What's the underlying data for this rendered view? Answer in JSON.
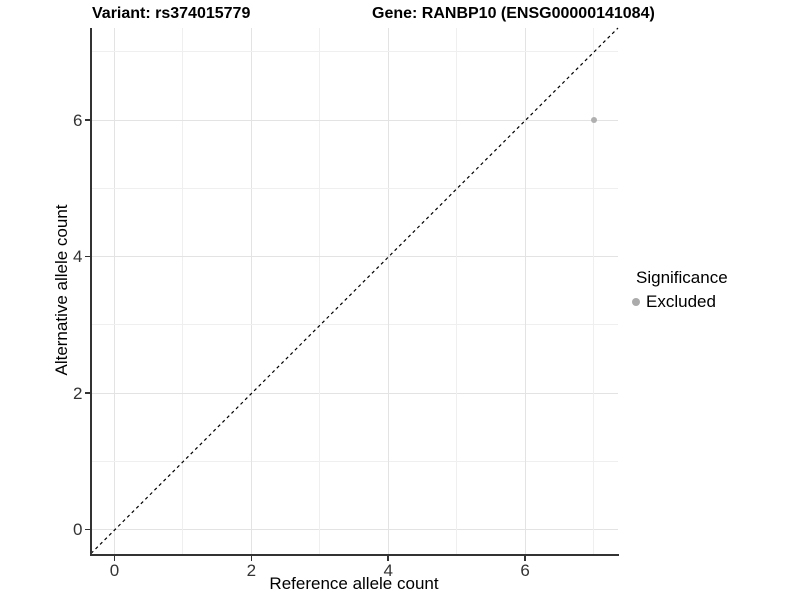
{
  "chart_data": {
    "type": "scatter",
    "title_left": "Variant: rs374015779",
    "title_right": "Gene: RANBP10 (ENSG00000141084)",
    "xlabel": "Reference allele count",
    "ylabel": "Alternative allele count",
    "xlim": [
      -0.35,
      7.35
    ],
    "ylim": [
      -0.35,
      7.35
    ],
    "x_ticks": [
      0,
      2,
      4,
      6
    ],
    "y_ticks": [
      0,
      2,
      4,
      6
    ],
    "grid_integers": [
      0,
      1,
      2,
      3,
      4,
      5,
      6,
      7
    ],
    "grid": "major at even integers, minor at odd integers",
    "identity_line": {
      "equation": "y = x",
      "style": "dashed",
      "color": "#000000"
    },
    "series": [
      {
        "name": "Excluded",
        "color": "#b0b0b0",
        "points": [
          {
            "x": 7,
            "y": 6
          }
        ]
      }
    ],
    "legend": {
      "title": "Significance",
      "position": "right",
      "items": [
        {
          "label": "Excluded",
          "color": "#ababab"
        }
      ]
    },
    "colors": {
      "grid_major": "#e3e3e3",
      "grid_minor": "#efefef",
      "axis": "#333333",
      "background": "#ffffff"
    }
  }
}
